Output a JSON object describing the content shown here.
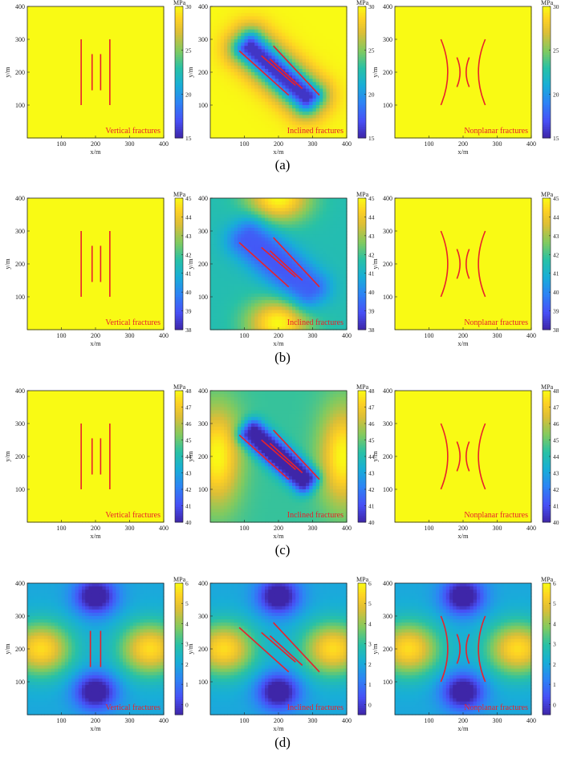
{
  "chart_data": {
    "type": "heatmap",
    "xlabel": "x/m",
    "ylabel": "y/m",
    "xlim": [
      0,
      400
    ],
    "ylim": [
      0,
      400
    ],
    "xticks": [
      100,
      200,
      300,
      400
    ],
    "yticks": [
      100,
      200,
      300,
      400
    ],
    "colormap": "parula",
    "unit": "MPa",
    "fracture_color": "#e8212b",
    "titles": [
      "Vertical fractures",
      "Inclined fractures",
      "Nonplanar fractures"
    ],
    "rows": [
      {
        "label": "(a)",
        "clim": [
          15,
          30
        ],
        "cticks": [
          15,
          20,
          25,
          30
        ],
        "field": "low"
      },
      {
        "label": "(b)",
        "clim": [
          38,
          45
        ],
        "cticks": [
          38,
          39,
          40,
          41,
          42,
          43,
          44,
          45
        ],
        "field": "mid"
      },
      {
        "label": "(c)",
        "clim": [
          40,
          48
        ],
        "cticks": [
          40,
          41,
          42,
          43,
          44,
          45,
          46,
          47,
          48
        ],
        "field": "side"
      },
      {
        "label": "(d)",
        "clim": [
          -0.5,
          6
        ],
        "cticks": [
          0,
          1,
          2,
          3,
          4,
          5,
          6
        ],
        "field": "diff"
      }
    ],
    "fractures": {
      "vertical": [
        [
          [
            158,
            100
          ],
          [
            158,
            300
          ]
        ],
        [
          [
            190,
            145
          ],
          [
            190,
            255
          ]
        ],
        [
          [
            215,
            145
          ],
          [
            215,
            255
          ]
        ],
        [
          [
            242,
            100
          ],
          [
            242,
            300
          ]
        ]
      ],
      "vertical_inner": [
        [
          [
            185,
            145
          ],
          [
            185,
            255
          ]
        ],
        [
          [
            215,
            145
          ],
          [
            215,
            255
          ]
        ]
      ],
      "inclined": [
        [
          [
            85,
            265
          ],
          [
            230,
            130
          ]
        ],
        [
          [
            150,
            250
          ],
          [
            250,
            160
          ]
        ],
        [
          [
            175,
            240
          ],
          [
            270,
            150
          ]
        ],
        [
          [
            185,
            280
          ],
          [
            320,
            130
          ]
        ]
      ],
      "nonplanar": [
        {
          "from": [
            135,
            300
          ],
          "ctrl": [
            175,
            200
          ],
          "to": [
            135,
            100
          ]
        },
        {
          "from": [
            265,
            300
          ],
          "ctrl": [
            225,
            200
          ],
          "to": [
            265,
            100
          ]
        },
        {
          "from": [
            182,
            245
          ],
          "ctrl": [
            200,
            200
          ],
          "to": [
            182,
            155
          ]
        },
        {
          "from": [
            218,
            245
          ],
          "ctrl": [
            200,
            200
          ],
          "to": [
            218,
            155
          ]
        }
      ]
    }
  }
}
